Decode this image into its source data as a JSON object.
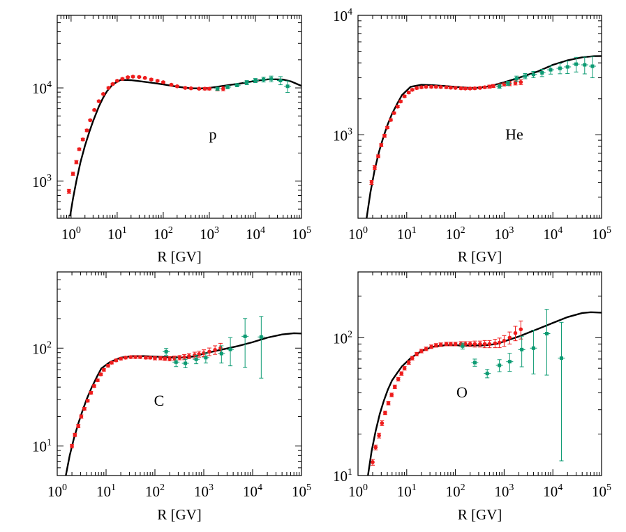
{
  "colors": {
    "red": "#ee1c1c",
    "green": "#0d9b73",
    "model": "#000000"
  },
  "chart_data": [
    {
      "type": "line",
      "panel_label": "p",
      "xlabel": "R [GV]",
      "ylabel": "",
      "xscale": "log",
      "yscale": "log",
      "xlim": [
        0.5,
        100000
      ],
      "ylim": [
        400,
        60000
      ],
      "x_ticks": [
        {
          "b": "10",
          "e": "0",
          "v": 1
        },
        {
          "b": "10",
          "e": "1",
          "v": 10
        },
        {
          "b": "10",
          "e": "2",
          "v": 100
        },
        {
          "b": "10",
          "e": "3",
          "v": 1000
        },
        {
          "b": "10",
          "e": "4",
          "v": 10000
        },
        {
          "b": "10",
          "e": "5",
          "v": 100000
        }
      ],
      "y_ticks": [
        {
          "b": "10",
          "e": "3",
          "v": 1000
        },
        {
          "b": "10",
          "e": "4",
          "v": 10000
        }
      ],
      "series": [
        {
          "style": "model",
          "x": [
            0.95,
            1.1,
            1.3,
            1.6,
            2,
            2.5,
            3,
            4,
            5,
            6,
            8,
            12,
            20,
            35,
            60,
            100,
            200,
            400,
            700,
            1000,
            2000,
            5000,
            10000,
            20000,
            40000,
            60000,
            100000
          ],
          "y": [
            420,
            650,
            1000,
            1600,
            2400,
            3400,
            4400,
            6300,
            7900,
            9200,
            10900,
            12200,
            12100,
            11700,
            11300,
            10900,
            10300,
            9900,
            9900,
            10000,
            10500,
            11200,
            11900,
            12400,
            12300,
            11700,
            10500
          ]
        },
        {
          "style": "red",
          "x": [
            0.9,
            1.1,
            1.3,
            1.5,
            1.8,
            2.2,
            2.6,
            3.2,
            4,
            5,
            6.5,
            8,
            10,
            13,
            17,
            22,
            30,
            40,
            55,
            75,
            100,
            150,
            200,
            300,
            400,
            600,
            800,
            1000,
            1500,
            2000
          ],
          "y": [
            780,
            1200,
            1600,
            2200,
            2800,
            3500,
            4500,
            5800,
            7200,
            8600,
            10000,
            11000,
            11900,
            12500,
            13000,
            13200,
            13100,
            12800,
            12300,
            11900,
            11500,
            10800,
            10400,
            10000,
            9900,
            9800,
            9800,
            9800,
            9700,
            9800
          ],
          "err": [
            0.05,
            0.04,
            0.04,
            0.03,
            0.03,
            0.03,
            0.02,
            0.02,
            0.02,
            0.02,
            0.02,
            0.02,
            0.02,
            0.02,
            0.02,
            0.02,
            0.02,
            0.02,
            0.02,
            0.02,
            0.02,
            0.02,
            0.02,
            0.02,
            0.02,
            0.02,
            0.03,
            0.03,
            0.04,
            0.05
          ]
        },
        {
          "style": "green",
          "x": [
            1500,
            2500,
            4000,
            6500,
            10000,
            15000,
            22000,
            35000,
            50000
          ],
          "y": [
            9800,
            10200,
            10700,
            11400,
            12000,
            12300,
            12500,
            12000,
            10400
          ],
          "err": [
            0.04,
            0.04,
            0.04,
            0.05,
            0.05,
            0.06,
            0.07,
            0.1,
            0.14
          ]
        }
      ]
    },
    {
      "type": "line",
      "panel_label": "He",
      "xlabel": "R [GV]",
      "ylabel": "",
      "xscale": "log",
      "yscale": "log",
      "xlim": [
        1,
        100000
      ],
      "ylim": [
        200,
        10000
      ],
      "x_ticks": [
        {
          "b": "10",
          "e": "0",
          "v": 1
        },
        {
          "b": "10",
          "e": "1",
          "v": 10
        },
        {
          "b": "10",
          "e": "2",
          "v": 100
        },
        {
          "b": "10",
          "e": "3",
          "v": 1000
        },
        {
          "b": "10",
          "e": "4",
          "v": 10000
        },
        {
          "b": "10",
          "e": "5",
          "v": 100000
        }
      ],
      "y_ticks": [
        {
          "b": "10",
          "e": "3",
          "v": 1000
        },
        {
          "b": "10",
          "e": "4",
          "v": 10000
        }
      ],
      "series": [
        {
          "style": "model",
          "x": [
            1.5,
            1.8,
            2.2,
            2.7,
            3.3,
            4,
            5,
            6.5,
            8,
            12,
            20,
            35,
            60,
            100,
            200,
            300,
            500,
            1000,
            2000,
            5000,
            10000,
            20000,
            40000,
            70000,
            100000
          ],
          "y": [
            200,
            330,
            510,
            720,
            950,
            1200,
            1500,
            1850,
            2150,
            2520,
            2620,
            2600,
            2560,
            2520,
            2470,
            2480,
            2550,
            2750,
            3000,
            3400,
            3850,
            4200,
            4450,
            4550,
            4560
          ]
        },
        {
          "style": "red",
          "x": [
            1.9,
            2.2,
            2.6,
            3,
            3.5,
            4,
            4.7,
            5.5,
            6.5,
            7.5,
            9,
            11,
            13,
            16,
            20,
            25,
            32,
            40,
            50,
            65,
            80,
            100,
            130,
            160,
            200,
            250,
            320,
            400,
            500,
            600,
            800,
            1000,
            1300,
            1700,
            2200
          ],
          "y": [
            400,
            530,
            660,
            820,
            980,
            1150,
            1330,
            1520,
            1720,
            1900,
            2100,
            2260,
            2380,
            2460,
            2500,
            2520,
            2520,
            2520,
            2510,
            2500,
            2480,
            2470,
            2450,
            2440,
            2440,
            2450,
            2470,
            2500,
            2530,
            2560,
            2600,
            2640,
            2680,
            2720,
            2760
          ],
          "err": [
            0.04,
            0.04,
            0.03,
            0.03,
            0.03,
            0.02,
            0.02,
            0.02,
            0.02,
            0.02,
            0.02,
            0.02,
            0.02,
            0.02,
            0.02,
            0.02,
            0.02,
            0.02,
            0.02,
            0.02,
            0.02,
            0.02,
            0.02,
            0.02,
            0.02,
            0.02,
            0.02,
            0.02,
            0.03,
            0.03,
            0.03,
            0.03,
            0.04,
            0.04,
            0.05
          ]
        },
        {
          "style": "green",
          "x": [
            800,
            1200,
            1800,
            2700,
            4000,
            6000,
            9000,
            14000,
            20000,
            30000,
            45000,
            65000
          ],
          "y": [
            2550,
            2700,
            2950,
            3100,
            3200,
            3300,
            3500,
            3600,
            3700,
            3900,
            3850,
            3750
          ],
          "err": [
            0.04,
            0.04,
            0.05,
            0.05,
            0.06,
            0.07,
            0.08,
            0.1,
            0.12,
            0.14,
            0.16,
            0.2
          ]
        }
      ]
    },
    {
      "type": "line",
      "panel_label": "C",
      "xlabel": "R [GV]",
      "ylabel": "",
      "xscale": "log",
      "yscale": "log",
      "xlim": [
        1,
        100000
      ],
      "ylim": [
        5,
        600
      ],
      "x_ticks": [
        {
          "b": "10",
          "e": "0",
          "v": 1
        },
        {
          "b": "10",
          "e": "1",
          "v": 10
        },
        {
          "b": "10",
          "e": "2",
          "v": 100
        },
        {
          "b": "10",
          "e": "3",
          "v": 1000
        },
        {
          "b": "10",
          "e": "4",
          "v": 10000
        },
        {
          "b": "10",
          "e": "5",
          "v": 100000
        }
      ],
      "y_ticks": [
        {
          "b": "10",
          "e": "1",
          "v": 10
        },
        {
          "b": "10",
          "e": "2",
          "v": 100
        }
      ],
      "series": [
        {
          "style": "model",
          "x": [
            1.5,
            1.8,
            2.2,
            2.7,
            3.3,
            4,
            5,
            6.5,
            8,
            12,
            20,
            35,
            60,
            100,
            200,
            400,
            700,
            1000,
            2000,
            5000,
            10000,
            20000,
            40000,
            70000,
            100000
          ],
          "y": [
            5,
            8,
            12,
            17,
            23,
            30,
            39,
            51,
            62,
            72,
            80,
            83,
            83,
            82,
            81,
            80,
            83,
            88,
            95,
            105,
            115,
            128,
            138,
            142,
            141
          ]
        },
        {
          "style": "red",
          "x": [
            2,
            2.3,
            2.7,
            3.1,
            3.6,
            4.2,
            4.9,
            5.7,
            6.7,
            7.8,
            9,
            11,
            13,
            16,
            20,
            25,
            32,
            40,
            50,
            65,
            80,
            100,
            130,
            160,
            200,
            250,
            320,
            400,
            500,
            650,
            800,
            1000,
            1300,
            1700,
            2200
          ],
          "y": [
            10,
            13,
            16,
            20,
            24,
            29,
            35,
            41,
            47,
            54,
            60,
            66,
            71,
            75,
            78,
            80,
            81,
            81,
            81,
            80,
            80,
            79,
            79,
            78,
            78,
            79,
            80,
            81,
            83,
            85,
            87,
            89,
            92,
            96,
            100
          ],
          "err": [
            0.04,
            0.04,
            0.04,
            0.04,
            0.03,
            0.03,
            0.03,
            0.03,
            0.03,
            0.03,
            0.03,
            0.03,
            0.03,
            0.03,
            0.03,
            0.03,
            0.03,
            0.03,
            0.03,
            0.03,
            0.03,
            0.04,
            0.04,
            0.04,
            0.05,
            0.05,
            0.05,
            0.06,
            0.06,
            0.07,
            0.07,
            0.08,
            0.09,
            0.1,
            0.12
          ]
        },
        {
          "style": "green",
          "x": [
            170,
            270,
            420,
            700,
            1100,
            2300,
            3500,
            7000,
            15000
          ],
          "y": [
            92,
            72,
            70,
            77,
            80,
            88,
            97,
            132,
            130
          ],
          "err": [
            0.08,
            0.1,
            0.1,
            0.1,
            0.12,
            0.2,
            0.32,
            0.52,
            0.62
          ]
        }
      ]
    },
    {
      "type": "line",
      "panel_label": "O",
      "xlabel": "R [GV]",
      "ylabel": "",
      "xscale": "log",
      "yscale": "log",
      "xlim": [
        1,
        100000
      ],
      "ylim": [
        10,
        300
      ],
      "x_ticks": [
        {
          "b": "10",
          "e": "0",
          "v": 1
        },
        {
          "b": "10",
          "e": "1",
          "v": 10
        },
        {
          "b": "10",
          "e": "2",
          "v": 100
        },
        {
          "b": "10",
          "e": "3",
          "v": 1000
        },
        {
          "b": "10",
          "e": "4",
          "v": 10000
        },
        {
          "b": "10",
          "e": "5",
          "v": 100000
        }
      ],
      "y_ticks": [
        {
          "b": "10",
          "e": "1",
          "v": 10
        },
        {
          "b": "10",
          "e": "2",
          "v": 100
        }
      ],
      "series": [
        {
          "style": "model",
          "x": [
            1.6,
            1.9,
            2.3,
            2.8,
            3.4,
            4.1,
            5,
            6.5,
            8,
            12,
            20,
            35,
            60,
            100,
            200,
            400,
            700,
            1000,
            2000,
            5000,
            10000,
            20000,
            40000,
            60000,
            100000
          ],
          "y": [
            10,
            15,
            21,
            28,
            35,
            42,
            49,
            56,
            62,
            71,
            80,
            86,
            88,
            88,
            88,
            88,
            90,
            94,
            102,
            116,
            128,
            141,
            151,
            153,
            152
          ]
        },
        {
          "style": "red",
          "x": [
            2,
            2.3,
            2.7,
            3.1,
            3.6,
            4.2,
            4.9,
            5.7,
            6.7,
            7.8,
            9,
            11,
            13,
            16,
            20,
            25,
            32,
            40,
            50,
            65,
            80,
            100,
            130,
            160,
            200,
            250,
            320,
            400,
            500,
            650,
            800,
            1000,
            1300,
            1700,
            2200
          ],
          "y": [
            12.5,
            16,
            19.5,
            24,
            28.5,
            33.5,
            38.5,
            44,
            50,
            55,
            60,
            66,
            71,
            76,
            80,
            83,
            86,
            88,
            89,
            90,
            90,
            90,
            90,
            90,
            90,
            90,
            90,
            90,
            90,
            91,
            92,
            95,
            100,
            108,
            115
          ],
          "err": [
            0.05,
            0.04,
            0.04,
            0.04,
            0.03,
            0.03,
            0.03,
            0.03,
            0.03,
            0.03,
            0.03,
            0.03,
            0.03,
            0.03,
            0.03,
            0.03,
            0.03,
            0.03,
            0.03,
            0.03,
            0.03,
            0.03,
            0.04,
            0.04,
            0.04,
            0.05,
            0.05,
            0.06,
            0.06,
            0.07,
            0.08,
            0.09,
            0.1,
            0.12,
            0.15
          ]
        },
        {
          "style": "green",
          "x": [
            140,
            250,
            450,
            800,
            1300,
            2300,
            4000,
            7500,
            15000
          ],
          "y": [
            87,
            66,
            55,
            63,
            67,
            82,
            84,
            107,
            71
          ],
          "err": [
            0.05,
            0.06,
            0.07,
            0.1,
            0.15,
            0.25,
            0.35,
            0.5,
            0.82
          ]
        }
      ]
    }
  ]
}
